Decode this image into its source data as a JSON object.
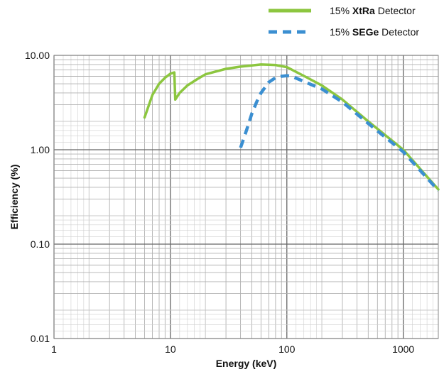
{
  "chart_data": {
    "type": "line",
    "title": "",
    "xlabel": "Energy (keV)",
    "ylabel": "Efficiency (%)",
    "x_scale": "log",
    "y_scale": "log",
    "xlim": [
      1,
      2000
    ],
    "ylim": [
      0.01,
      10
    ],
    "x_tick_labels": [
      "1",
      "10",
      "100",
      "1000"
    ],
    "y_tick_labels": [
      "0.01",
      "0.10",
      "1.00",
      "10.00"
    ],
    "grid": true,
    "legend_position": "top-right",
    "legend": [
      {
        "prefix": "15% ",
        "bold": "XtRa",
        "suffix": " Detector"
      },
      {
        "prefix": "15% ",
        "bold": "SEGe",
        "suffix": " Detector"
      }
    ],
    "series": [
      {
        "name": "15% XtRa Detector",
        "color": "#8cc63f",
        "line_style": "solid",
        "x": [
          6,
          7,
          8,
          9,
          10,
          10.8,
          11,
          12,
          14,
          17,
          20,
          30,
          40,
          60,
          80,
          100,
          150,
          200,
          300,
          500,
          1000,
          2000
        ],
        "y": [
          2.2,
          3.8,
          5.0,
          5.8,
          6.4,
          6.6,
          3.4,
          4.0,
          4.8,
          5.6,
          6.3,
          7.2,
          7.6,
          8.0,
          7.9,
          7.5,
          5.8,
          4.8,
          3.4,
          2.0,
          1.0,
          0.38
        ]
      },
      {
        "name": "15% SEGe Detector",
        "color": "#3b8fd1",
        "line_style": "dashed",
        "x": [
          40,
          45,
          50,
          55,
          60,
          70,
          80,
          90,
          100,
          110,
          130,
          150,
          200,
          300,
          500,
          1000,
          2000
        ],
        "y": [
          1.05,
          1.6,
          2.4,
          3.2,
          4.0,
          5.2,
          5.8,
          6.0,
          6.1,
          6.0,
          5.5,
          5.1,
          4.4,
          3.2,
          1.9,
          0.95,
          0.37
        ]
      }
    ]
  }
}
